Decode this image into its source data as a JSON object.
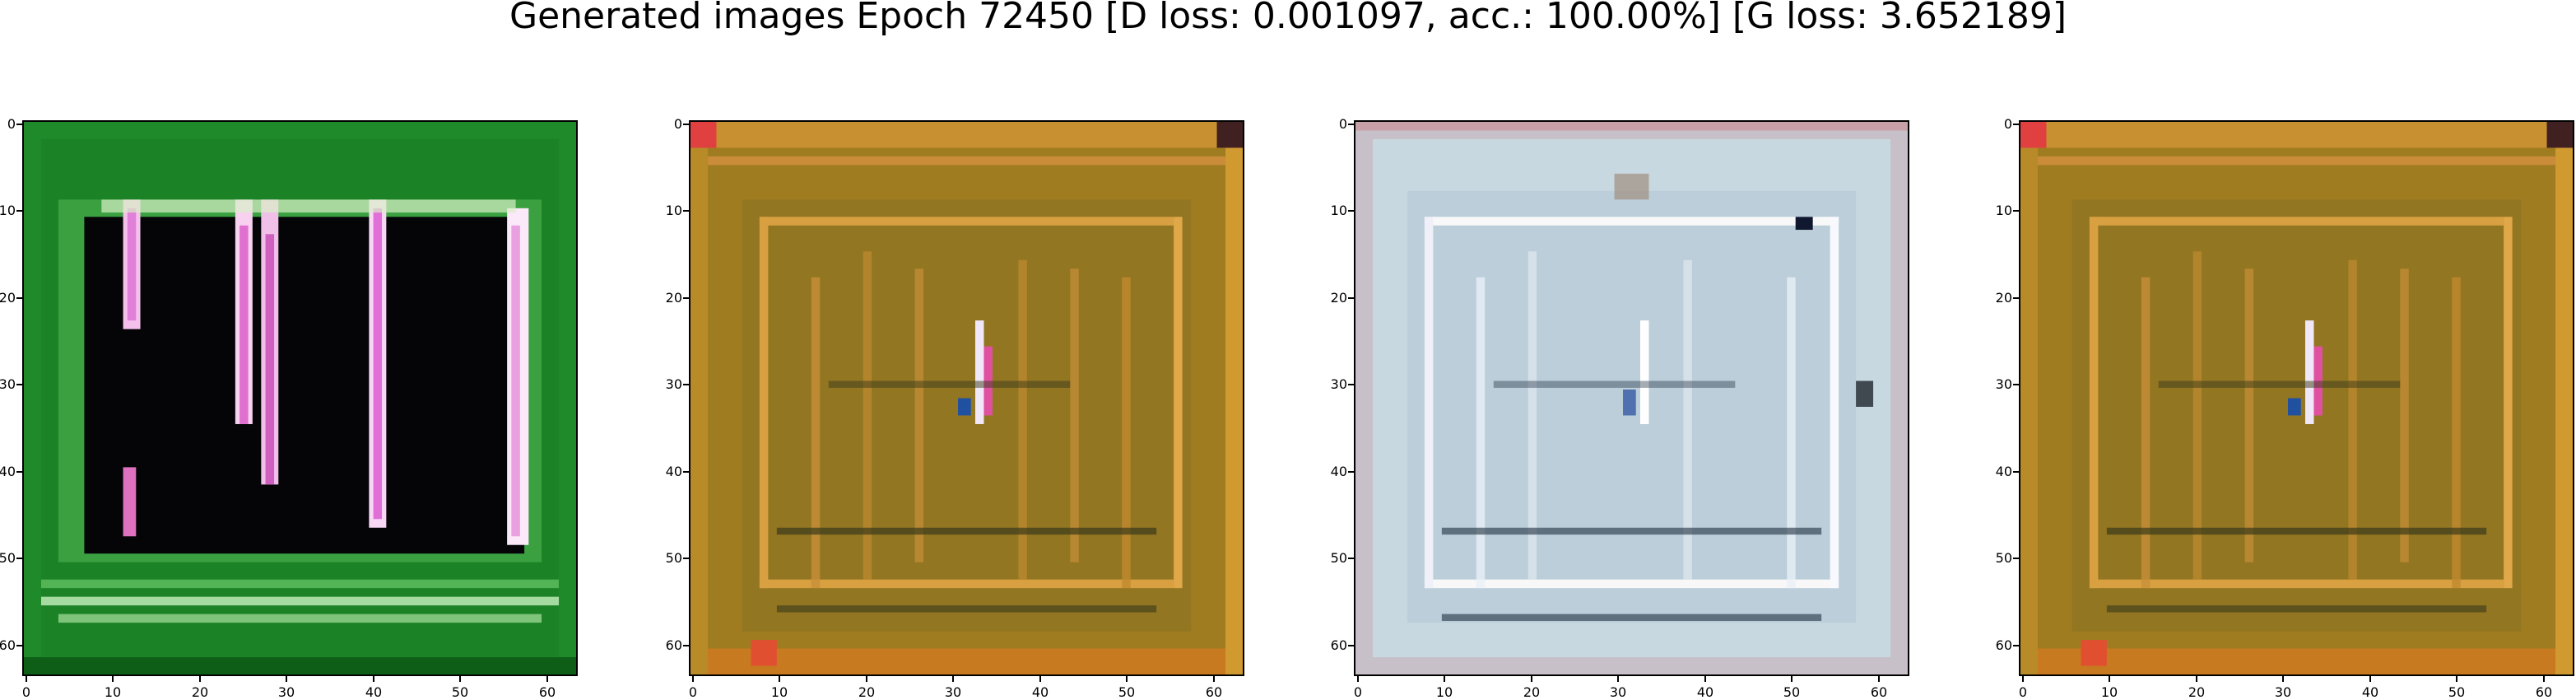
{
  "title": "Generated images Epoch 72450 [D loss: 0.001097, acc.: 100.00%] [G loss: 3.652189]",
  "axis": {
    "yticks": [
      "0",
      "10",
      "20",
      "30",
      "40",
      "50",
      "60"
    ],
    "xticks": [
      "0",
      "10",
      "20",
      "30",
      "40",
      "50",
      "60"
    ],
    "tick_values": [
      0,
      10,
      20,
      30,
      40,
      50,
      60
    ],
    "pixel_range": [
      0,
      63
    ]
  },
  "panels": [
    {
      "id": "panel-1",
      "description_colors": {
        "background": "#1f8a2a",
        "dark": "#050508",
        "stripe": "#f0a6e8"
      },
      "style": "green"
    },
    {
      "id": "panel-2",
      "description_colors": {
        "background": "#9a7a22",
        "dark": "#3a3a1a",
        "stripe": "#e6a040"
      },
      "style": "orange"
    },
    {
      "id": "panel-3",
      "description_colors": {
        "background": "#c8d8e0",
        "dark": "#203040",
        "stripe": "#ffffff"
      },
      "style": "pale"
    },
    {
      "id": "panel-4",
      "description_colors": {
        "background": "#9a7a22",
        "dark": "#3a3a1a",
        "stripe": "#e6a040"
      },
      "style": "orange"
    }
  ]
}
